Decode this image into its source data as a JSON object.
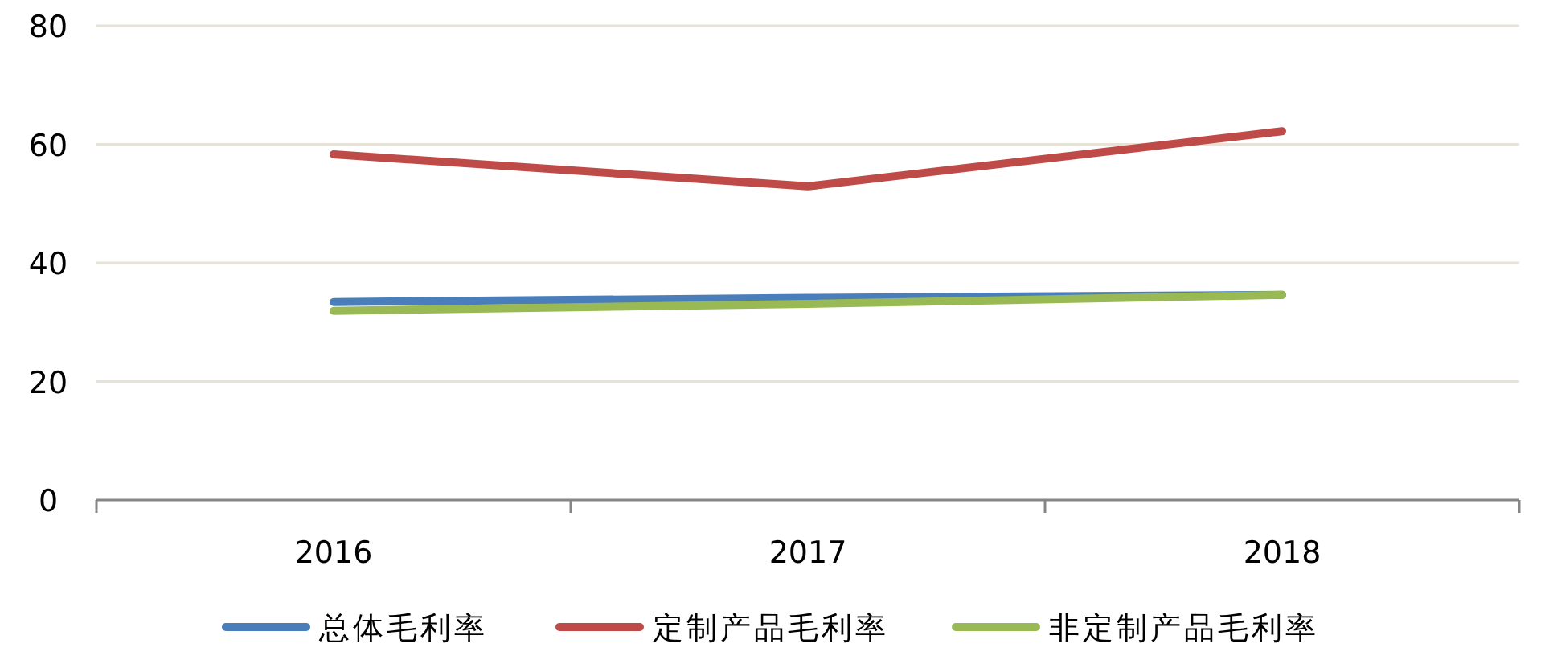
{
  "chart_data": {
    "type": "line",
    "categories": [
      "2016",
      "2017",
      "2018"
    ],
    "series": [
      {
        "name": "总体毛利率",
        "color": "#4a7ebb",
        "values": [
          33.4,
          34.1,
          34.6
        ]
      },
      {
        "name": "定制产品毛利率",
        "color": "#be4b48",
        "values": [
          58.3,
          52.9,
          62.2
        ]
      },
      {
        "name": "非定制产品毛利率",
        "color": "#98b954",
        "values": [
          31.9,
          33.1,
          34.6
        ]
      }
    ],
    "ylim": [
      0,
      80
    ],
    "yticks": [
      0,
      20,
      40,
      60,
      80
    ],
    "grid": "y",
    "legend": "bottom",
    "marker": "none",
    "line_style": "solid"
  }
}
